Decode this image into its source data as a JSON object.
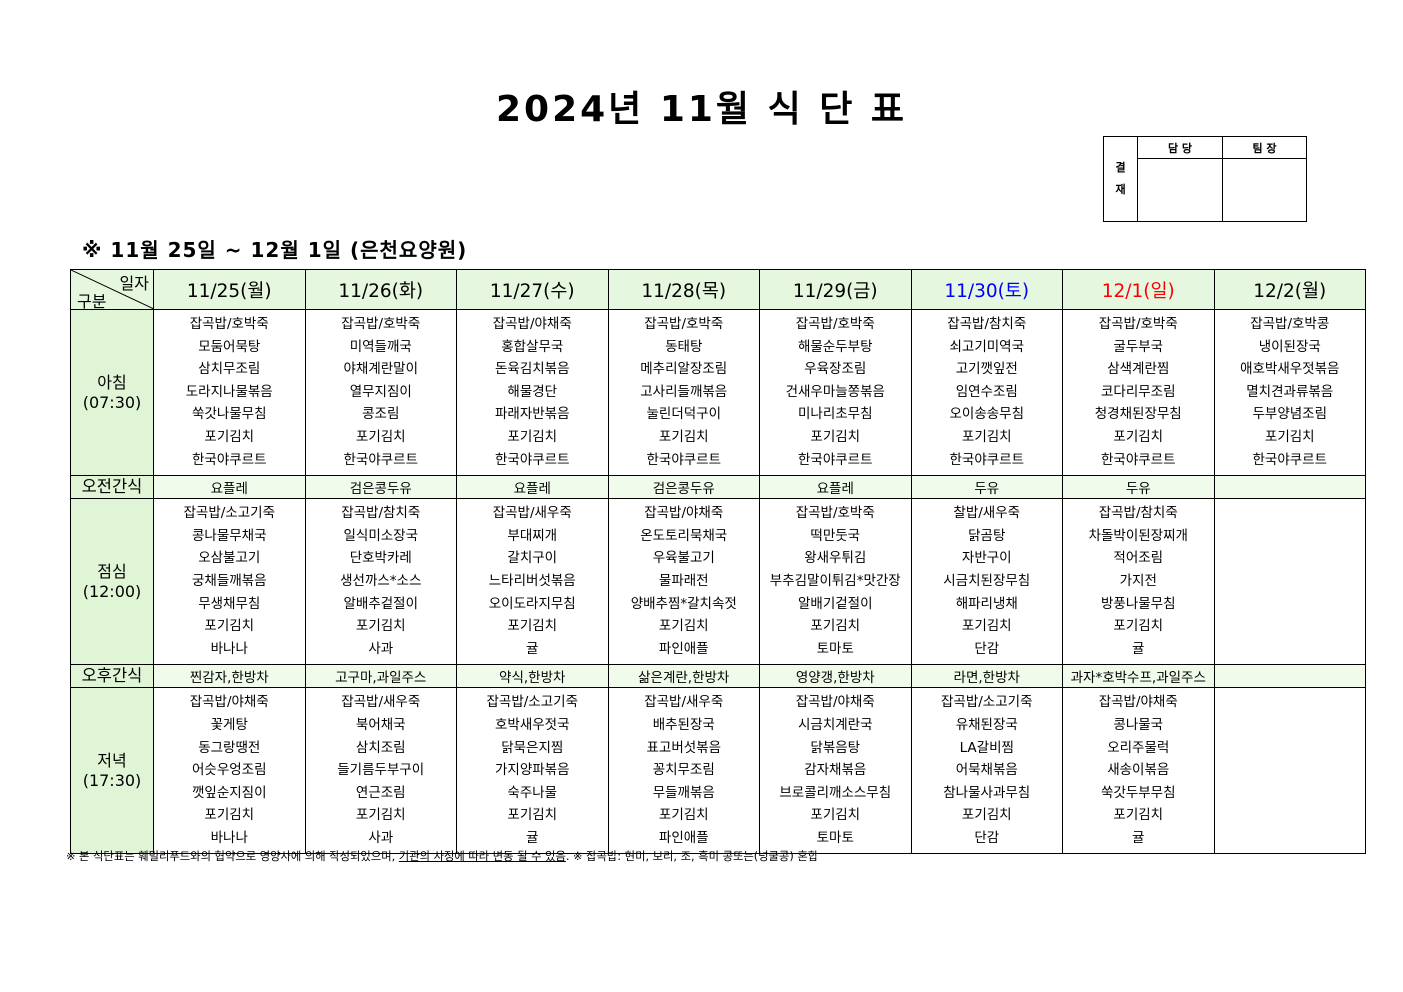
{
  "title": "2024년 11월 식 단 표",
  "approval": {
    "side_label": "결\n재",
    "side_top": "결",
    "side_bottom": "재",
    "columns": [
      "담 당",
      "팀 장"
    ]
  },
  "subtitle": "※ 11월 25일 ~ 12월 1일 (은천요양원)",
  "table": {
    "corner_top": "일자",
    "corner_bottom": "구분",
    "days": [
      {
        "label": "11/25(월)",
        "color": "#000000"
      },
      {
        "label": "11/26(화)",
        "color": "#000000"
      },
      {
        "label": "11/27(수)",
        "color": "#000000"
      },
      {
        "label": "11/28(목)",
        "color": "#000000"
      },
      {
        "label": "11/29(금)",
        "color": "#000000"
      },
      {
        "label": "11/30(토)",
        "color": "#0000ff"
      },
      {
        "label": "12/1(일)",
        "color": "#ff0000"
      },
      {
        "label": "12/2(월)",
        "color": "#000000"
      }
    ],
    "rows": [
      {
        "type": "meal",
        "label": "아침",
        "time": "(07:30)",
        "cells": [
          [
            "잡곡밥/호박죽",
            "모둠어묵탕",
            "삼치무조림",
            "도라지나물볶음",
            "쑥갓나물무침",
            "포기김치",
            "한국야쿠르트"
          ],
          [
            "잡곡밥/호박죽",
            "미역들깨국",
            "야채계란말이",
            "열무지짐이",
            "콩조림",
            "포기김치",
            "한국야쿠르트"
          ],
          [
            "잡곡밥/야채죽",
            "홍합살무국",
            "돈육김치볶음",
            "해물경단",
            "파래자반볶음",
            "포기김치",
            "한국야쿠르트"
          ],
          [
            "잡곡밥/호박죽",
            "동태탕",
            "메추리알장조림",
            "고사리들깨볶음",
            "눌린더덕구이",
            "포기김치",
            "한국야쿠르트"
          ],
          [
            "잡곡밥/호박죽",
            "해물순두부탕",
            "우육장조림",
            "건새우마늘쫑볶음",
            "미나리초무침",
            "포기김치",
            "한국야쿠르트"
          ],
          [
            "잡곡밥/참치죽",
            "쇠고기미역국",
            "고기깻잎전",
            "임연수조림",
            "오이송송무침",
            "포기김치",
            "한국야쿠르트"
          ],
          [
            "잡곡밥/호박죽",
            "굴두부국",
            "삼색계란찜",
            "코다리무조림",
            "청경채된장무침",
            "포기김치",
            "한국야쿠르트"
          ],
          [
            "잡곡밥/호박콩",
            "냉이된장국",
            "애호박새우젓볶음",
            "멸치견과류볶음",
            "두부양념조림",
            "포기김치",
            "한국야쿠르트"
          ]
        ]
      },
      {
        "type": "snack",
        "label": "오전간식",
        "cells": [
          "요플레",
          "검은콩두유",
          "요플레",
          "검은콩두유",
          "요플레",
          "두유",
          "두유",
          ""
        ]
      },
      {
        "type": "meal",
        "label": "점심",
        "time": "(12:00)",
        "cells": [
          [
            "잡곡밥/소고기죽",
            "콩나물무채국",
            "오삼불고기",
            "궁채들깨볶음",
            "무생채무침",
            "포기김치",
            "바나나"
          ],
          [
            "잡곡밥/참치죽",
            "일식미소장국",
            "단호박카레",
            "생선까스*소스",
            "알배추겉절이",
            "포기김치",
            "사과"
          ],
          [
            "잡곡밥/새우죽",
            "부대찌개",
            "갈치구이",
            "느타리버섯볶음",
            "오이도라지무침",
            "포기김치",
            "귤"
          ],
          [
            "잡곡밥/야채죽",
            "온도토리묵채국",
            "우육불고기",
            "물파래전",
            "양배추찜*갈치속젓",
            "포기김치",
            "파인애플"
          ],
          [
            "잡곡밥/호박죽",
            "떡만둣국",
            "왕새우튀김",
            "부추김말이튀김*맛간장",
            "알배기겉절이",
            "포기김치",
            "토마토"
          ],
          [
            "찰밥/새우죽",
            "닭곰탕",
            "자반구이",
            "시금치된장무침",
            "해파리냉채",
            "포기김치",
            "단감"
          ],
          [
            "잡곡밥/참치죽",
            "차돌박이된장찌개",
            "적어조림",
            "가지전",
            "방풍나물무침",
            "포기김치",
            "귤"
          ],
          []
        ]
      },
      {
        "type": "snack",
        "label": "오후간식",
        "cells": [
          "찐감자,한방차",
          "고구마,과일주스",
          "약식,한방차",
          "삶은계란,한방차",
          "영양갱,한방차",
          "라면,한방차",
          "과자*호박수프,과일주스",
          ""
        ]
      },
      {
        "type": "meal",
        "label": "저녁",
        "time": "(17:30)",
        "cells": [
          [
            "잡곡밥/야채죽",
            "꽃게탕",
            "동그랑땡전",
            "어슷우엉조림",
            "깻잎순지짐이",
            "포기김치",
            "바나나"
          ],
          [
            "잡곡밥/새우죽",
            "북어채국",
            "삼치조림",
            "들기름두부구이",
            "연근조림",
            "포기김치",
            "사과"
          ],
          [
            "잡곡밥/소고기죽",
            "호박새우젓국",
            "닭묵은지찜",
            "가지양파볶음",
            "숙주나물",
            "포기김치",
            "귤"
          ],
          [
            "잡곡밥/새우죽",
            "배추된장국",
            "표고버섯볶음",
            "꽁치무조림",
            "무들깨볶음",
            "포기김치",
            "파인애플"
          ],
          [
            "잡곡밥/야채죽",
            "시금치계란국",
            "닭볶음탕",
            "감자채볶음",
            "브로콜리깨소스무침",
            "포기김치",
            "토마토"
          ],
          [
            "잡곡밥/소고기죽",
            "유채된장국",
            "LA갈비찜",
            "어묵채볶음",
            "참나물사과무침",
            "포기김치",
            "단감"
          ],
          [
            "잡곡밥/야채죽",
            "콩나물국",
            "오리주물럭",
            "새송이볶음",
            "쑥갓두부무침",
            "포기김치",
            "귤"
          ],
          []
        ]
      }
    ]
  },
  "footer": {
    "part1": "※ 본 식단표는 훼밀리푸드와의 협약으로 영양사에 의해 작성되었으며, ",
    "underlined": "기관의 사정에 따라 변동 될 수 있음",
    "part2": ". ※ 잡곡밥: 현미, 보리, 조, 흑미 콩또는(넝쿨콩) 혼합"
  }
}
